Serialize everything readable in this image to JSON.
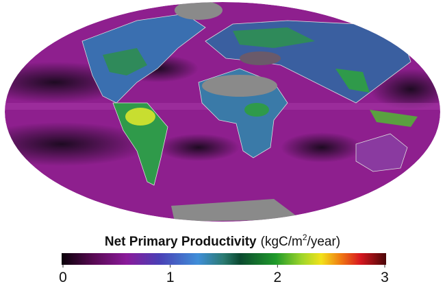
{
  "colorbar": {
    "title": "Net Primary Productivity",
    "unit_prefix": "(kgC/m",
    "unit_sup": "2",
    "unit_suffix": "/year)",
    "range": [
      0,
      3
    ],
    "ticks": [
      0,
      1,
      2,
      3
    ]
  }
}
